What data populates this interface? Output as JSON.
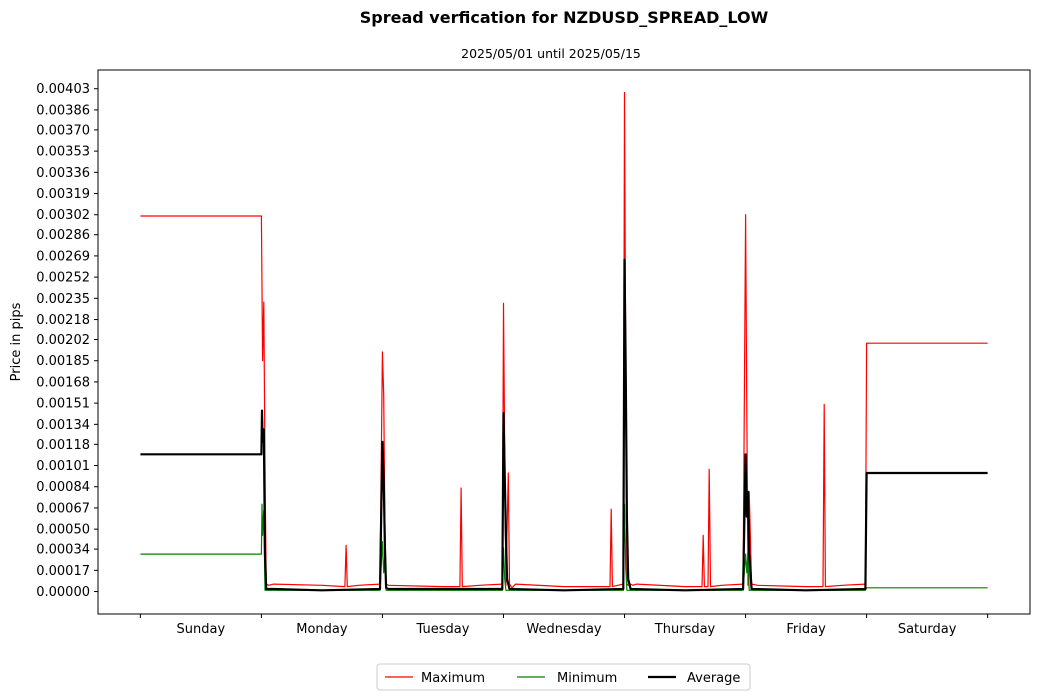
{
  "chart_data": {
    "type": "line",
    "title": "Spread verfication for NZDUSD_SPREAD_LOW",
    "subtitle": "2025/05/01 until 2025/05/15",
    "xlabel": "",
    "ylabel": "Price in pips",
    "ylim": [
      -0.00018,
      0.00418
    ],
    "xlim": [
      -0.35,
      7.35
    ],
    "yticks": [
      "0.00000",
      "0.00017",
      "0.00034",
      "0.00050",
      "0.00067",
      "0.00084",
      "0.00101",
      "0.00118",
      "0.00134",
      "0.00151",
      "0.00168",
      "0.00185",
      "0.00202",
      "0.00218",
      "0.00235",
      "0.00252",
      "0.00269",
      "0.00286",
      "0.00302",
      "0.00319",
      "0.00336",
      "0.00353",
      "0.00370",
      "0.00386",
      "0.00403"
    ],
    "categories": [
      "Sunday",
      "Monday",
      "Tuesday",
      "Wednesday",
      "Thursday",
      "Friday",
      "Saturday"
    ],
    "legend": {
      "position": "bottom-center",
      "entries": [
        "Maximum",
        "Minimum",
        "Average"
      ]
    },
    "colors": {
      "Maximum": "#ff0000",
      "Minimum": "#008000",
      "Average": "#000000"
    },
    "series": [
      {
        "name": "Maximum",
        "x": [
          0,
          1.0,
          1.01,
          1.02,
          1.03,
          1.04,
          1.06,
          1.1,
          1.5,
          1.69,
          1.7,
          1.71,
          1.8,
          1.98,
          2.0,
          2.01,
          2.02,
          2.03,
          2.05,
          2.5,
          2.64,
          2.65,
          2.66,
          2.8,
          2.99,
          3.0,
          3.01,
          3.02,
          3.04,
          3.05,
          3.07,
          3.1,
          3.5,
          3.88,
          3.89,
          3.9,
          3.99,
          4.0,
          4.01,
          4.02,
          4.03,
          4.05,
          4.07,
          4.1,
          4.5,
          4.64,
          4.65,
          4.66,
          4.69,
          4.7,
          4.71,
          4.8,
          4.98,
          5.0,
          5.01,
          5.02,
          5.03,
          5.05,
          5.1,
          5.5,
          5.64,
          5.65,
          5.66,
          5.8,
          5.99,
          6.0,
          6.5,
          7.0
        ],
        "y": [
          0.00301,
          0.00301,
          0.00185,
          0.00232,
          0.001,
          6e-05,
          5e-05,
          6e-05,
          5e-05,
          4e-05,
          0.00037,
          4e-05,
          5e-05,
          6e-05,
          0.00192,
          0.00158,
          0.00055,
          6e-05,
          5e-05,
          4e-05,
          4e-05,
          0.00083,
          4e-05,
          5e-05,
          6e-05,
          0.00231,
          0.00112,
          5e-05,
          0.00095,
          6e-05,
          3e-05,
          6e-05,
          4e-05,
          4e-05,
          0.00066,
          4e-05,
          6e-05,
          0.004,
          0.0018,
          6e-05,
          5e-05,
          6e-05,
          5e-05,
          6e-05,
          4e-05,
          4e-05,
          0.00045,
          4e-05,
          4e-05,
          0.00098,
          4e-05,
          5e-05,
          6e-05,
          0.00302,
          0.00146,
          5e-05,
          0.0008,
          6e-05,
          5e-05,
          4e-05,
          4e-05,
          0.0015,
          4e-05,
          5e-05,
          6e-05,
          0.00199,
          0.00199,
          0.00199
        ]
      },
      {
        "name": "Minimum",
        "x": [
          0,
          1.0,
          1.005,
          1.01,
          1.02,
          1.03,
          1.1,
          1.98,
          2.0,
          2.01,
          2.02,
          2.03,
          2.1,
          2.99,
          3.0,
          3.01,
          3.02,
          3.1,
          3.99,
          4.0,
          4.01,
          4.02,
          4.1,
          4.98,
          5.0,
          5.01,
          5.02,
          5.03,
          5.1,
          5.99,
          6.0,
          7.0
        ],
        "y": [
          0.0003,
          0.0003,
          0.0007,
          0.00045,
          0.00065,
          1e-05,
          1e-05,
          1e-05,
          0.0004,
          0.00015,
          0.0003,
          1e-05,
          1e-05,
          1e-05,
          0.00035,
          0.0001,
          1e-05,
          1e-05,
          1e-05,
          0.0007,
          0.0002,
          1e-05,
          1e-05,
          1e-05,
          0.0003,
          0.00015,
          0.00032,
          1e-05,
          1e-05,
          1e-05,
          3e-05,
          3e-05
        ]
      },
      {
        "name": "Average",
        "x": [
          0,
          1.0,
          1.005,
          1.01,
          1.02,
          1.03,
          1.04,
          1.1,
          1.5,
          1.98,
          2.0,
          2.01,
          2.02,
          2.03,
          2.05,
          2.5,
          2.99,
          3.0,
          3.01,
          3.02,
          3.03,
          3.05,
          3.5,
          3.99,
          4.0,
          4.01,
          4.02,
          4.03,
          4.05,
          4.5,
          4.98,
          5.0,
          5.01,
          5.02,
          5.03,
          5.05,
          5.5,
          5.99,
          6.0,
          7.0
        ],
        "y": [
          0.0011,
          0.0011,
          0.00145,
          0.0012,
          0.0013,
          0.0003,
          2e-05,
          2e-05,
          1e-05,
          2e-05,
          0.0012,
          0.0009,
          0.00035,
          3e-05,
          2e-05,
          2e-05,
          2e-05,
          0.00143,
          0.00095,
          0.00045,
          0.0001,
          2e-05,
          1e-05,
          2e-05,
          0.00266,
          0.0018,
          0.0006,
          0.0001,
          2e-05,
          1e-05,
          2e-05,
          0.0011,
          0.0006,
          0.0008,
          0.0003,
          2e-05,
          1e-05,
          2e-05,
          0.00095,
          0.00095
        ]
      }
    ]
  }
}
